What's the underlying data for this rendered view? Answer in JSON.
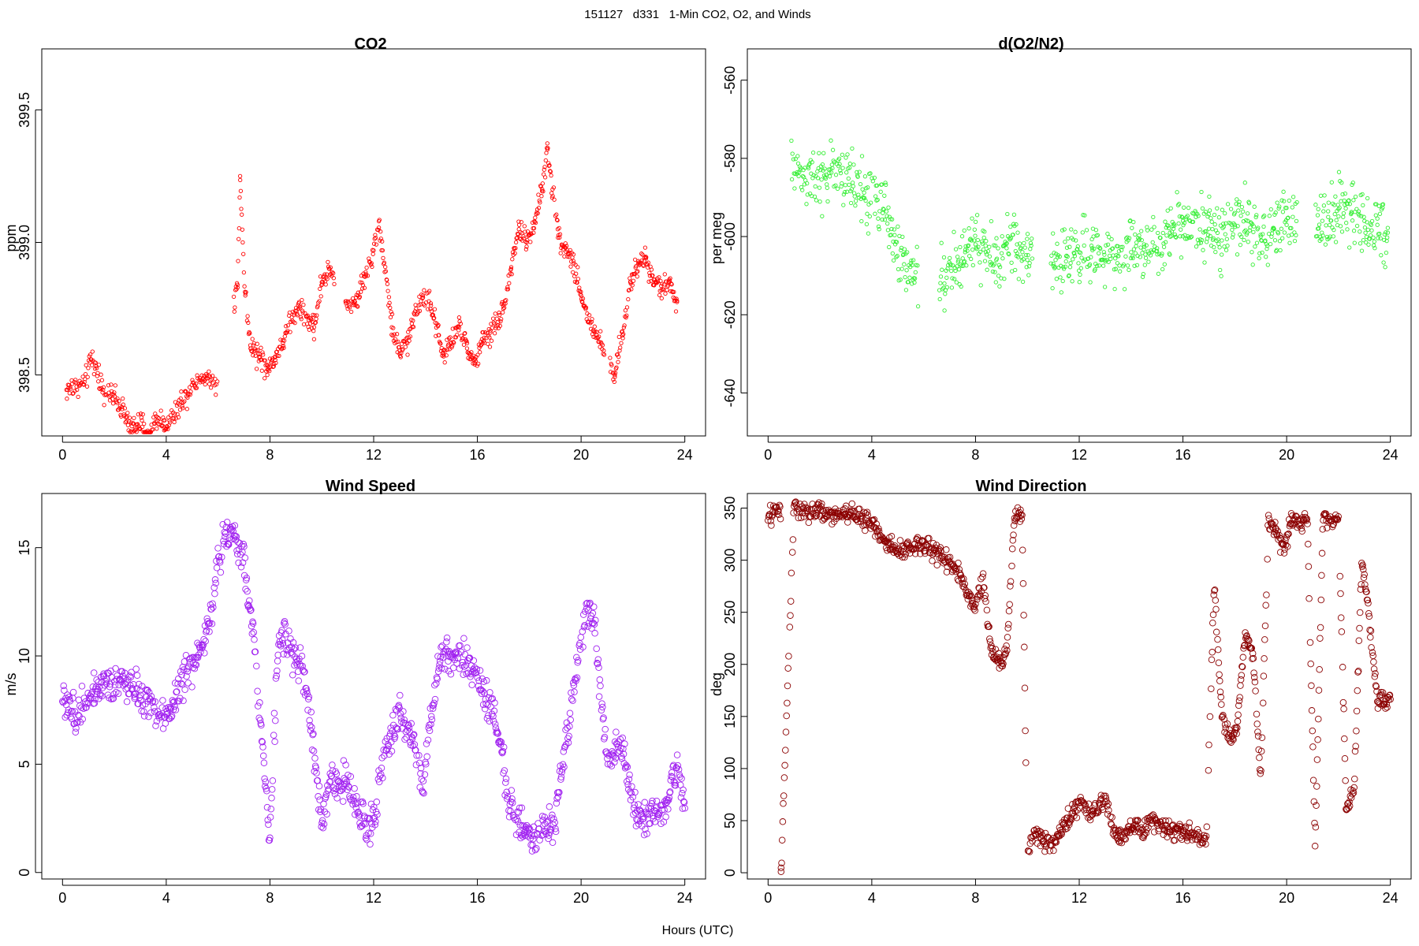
{
  "page": {
    "suptitle": "151127   d331   1-Min CO2, O2, and Winds",
    "xlabel": "Hours (UTC)"
  },
  "chart_data": [
    {
      "id": "co2",
      "type": "scatter",
      "title": "CO2",
      "ylabel": "ppm",
      "xlim": [
        -0.8,
        24.8
      ],
      "ylim": [
        398.27,
        399.73
      ],
      "xticks": [
        0,
        4,
        8,
        12,
        16,
        20,
        24
      ],
      "yticks": [
        398.5,
        399.0,
        399.5
      ],
      "ytick_labels": [
        "398.5",
        "399.0",
        "399.5"
      ],
      "color": "#ff0000",
      "marker_size": 2.2,
      "anchors": [
        [
          0.15,
          398.44
        ],
        [
          0.5,
          398.46
        ],
        [
          0.9,
          398.47
        ],
        [
          1.1,
          398.58
        ],
        [
          1.3,
          398.52
        ],
        [
          1.6,
          398.44
        ],
        [
          1.9,
          398.42
        ],
        [
          2.3,
          398.38
        ],
        [
          2.6,
          398.3
        ],
        [
          3.0,
          398.32
        ],
        [
          3.3,
          398.26
        ],
        [
          3.6,
          398.34
        ],
        [
          4.0,
          398.31
        ],
        [
          4.4,
          398.37
        ],
        [
          4.8,
          398.43
        ],
        [
          5.1,
          398.48
        ],
        [
          5.6,
          398.49
        ],
        [
          5.9,
          398.46
        ]
      ],
      "gaps": [
        [
          6.0,
          6.6
        ],
        [
          10.5,
          10.9
        ],
        [
          20.9,
          21.1
        ]
      ],
      "points": [
        [
          6.75,
          398.84
        ],
        [
          6.85,
          399.25
        ],
        [
          6.95,
          399.0
        ],
        [
          7.05,
          398.8
        ],
        [
          7.25,
          398.6
        ],
        [
          7.6,
          398.58
        ],
        [
          7.9,
          398.52
        ],
        [
          8.2,
          398.57
        ],
        [
          8.5,
          398.62
        ],
        [
          8.8,
          398.7
        ],
        [
          9.1,
          398.75
        ],
        [
          9.4,
          398.72
        ],
        [
          9.7,
          398.68
        ],
        [
          10.0,
          398.85
        ],
        [
          10.3,
          398.9
        ],
        [
          11.0,
          398.75
        ],
        [
          11.4,
          398.8
        ],
        [
          11.7,
          398.88
        ],
        [
          12.0,
          398.97
        ],
        [
          12.2,
          399.08
        ],
        [
          12.5,
          398.86
        ],
        [
          12.7,
          398.68
        ],
        [
          13.0,
          398.58
        ],
        [
          13.3,
          398.62
        ],
        [
          13.6,
          398.74
        ],
        [
          13.9,
          398.8
        ],
        [
          14.2,
          398.77
        ],
        [
          14.5,
          398.65
        ],
        [
          14.7,
          398.57
        ],
        [
          15.0,
          398.62
        ],
        [
          15.3,
          398.68
        ],
        [
          15.6,
          398.6
        ],
        [
          15.9,
          398.54
        ],
        [
          16.2,
          398.62
        ],
        [
          16.5,
          398.66
        ],
        [
          16.8,
          398.7
        ],
        [
          17.0,
          398.75
        ],
        [
          17.3,
          398.9
        ],
        [
          17.6,
          399.05
        ],
        [
          17.9,
          399.0
        ],
        [
          18.2,
          399.08
        ],
        [
          18.5,
          399.2
        ],
        [
          18.7,
          399.35
        ],
        [
          18.9,
          399.2
        ],
        [
          19.1,
          399.05
        ],
        [
          19.4,
          398.98
        ],
        [
          19.7,
          398.93
        ],
        [
          20.0,
          398.8
        ],
        [
          20.3,
          398.7
        ],
        [
          20.6,
          398.65
        ],
        [
          21.3,
          398.5
        ],
        [
          21.6,
          398.65
        ],
        [
          21.9,
          398.85
        ],
        [
          22.2,
          398.92
        ],
        [
          22.5,
          398.94
        ],
        [
          22.8,
          398.86
        ],
        [
          23.1,
          398.82
        ],
        [
          23.4,
          398.86
        ],
        [
          23.7,
          398.78
        ]
      ]
    },
    {
      "id": "o2",
      "type": "scatter",
      "title": "d(O2/N2)",
      "ylabel": "per meg",
      "xlim": [
        -0.8,
        24.8
      ],
      "ylim": [
        -651.0,
        -552.0
      ],
      "xticks": [
        0,
        4,
        8,
        12,
        16,
        20,
        24
      ],
      "yticks": [
        -640,
        -620,
        -600,
        -580,
        -560
      ],
      "ytick_labels": [
        "-640",
        "-620",
        "-600",
        "-580",
        "-560"
      ],
      "color": "#33ee33",
      "marker_size": 2.2,
      "anchors": [
        [
          0.9,
          -582
        ],
        [
          1.5,
          -584
        ],
        [
          2.0,
          -586
        ],
        [
          2.5,
          -583
        ],
        [
          3.0,
          -585
        ],
        [
          3.5,
          -588
        ],
        [
          4.0,
          -590
        ],
        [
          4.5,
          -593
        ],
        [
          5.0,
          -604
        ],
        [
          5.5,
          -608
        ]
      ],
      "gaps": [
        [
          5.8,
          6.6
        ],
        [
          10.2,
          10.9
        ],
        [
          20.4,
          21.1
        ]
      ],
      "points": [
        [
          6.8,
          -612
        ],
        [
          7.2,
          -608
        ],
        [
          7.6,
          -604
        ],
        [
          8.0,
          -602
        ],
        [
          8.4,
          -604
        ],
        [
          8.8,
          -606
        ],
        [
          9.2,
          -603
        ],
        [
          9.6,
          -602
        ],
        [
          10.0,
          -606
        ],
        [
          11.0,
          -607
        ],
        [
          11.5,
          -605
        ],
        [
          12.0,
          -604
        ],
        [
          12.5,
          -603
        ],
        [
          13.0,
          -606
        ],
        [
          13.5,
          -605
        ],
        [
          14.0,
          -604
        ],
        [
          14.5,
          -602
        ],
        [
          15.0,
          -603
        ],
        [
          15.5,
          -599
        ],
        [
          16.0,
          -596
        ],
        [
          16.5,
          -595
        ],
        [
          17.0,
          -598
        ],
        [
          17.5,
          -601
        ],
        [
          18.0,
          -597
        ],
        [
          18.5,
          -596
        ],
        [
          19.0,
          -600
        ],
        [
          19.5,
          -598
        ],
        [
          20.0,
          -597
        ],
        [
          21.2,
          -598
        ],
        [
          21.6,
          -595
        ],
        [
          22.0,
          -593
        ],
        [
          22.5,
          -594
        ],
        [
          23.0,
          -596
        ],
        [
          23.5,
          -597
        ],
        [
          23.9,
          -599
        ]
      ]
    },
    {
      "id": "wspd",
      "type": "scatter",
      "title": "Wind Speed",
      "ylabel": "m/s",
      "xlim": [
        -0.8,
        24.8
      ],
      "ylim": [
        -0.3,
        17.5
      ],
      "xticks": [
        0,
        4,
        8,
        12,
        16,
        20,
        24
      ],
      "yticks": [
        0,
        5,
        10,
        15
      ],
      "ytick_labels": [
        "0",
        "5",
        "10",
        "15"
      ],
      "color": "#a020f0",
      "marker_size": 3.8,
      "anchors": [
        [
          0.0,
          8.0
        ],
        [
          0.5,
          7.2
        ],
        [
          0.9,
          8.0
        ],
        [
          1.3,
          8.3
        ],
        [
          1.8,
          8.6
        ],
        [
          2.3,
          8.9
        ],
        [
          2.8,
          8.4
        ],
        [
          3.3,
          7.9
        ],
        [
          3.8,
          7.0
        ],
        [
          4.2,
          7.7
        ],
        [
          4.6,
          8.8
        ],
        [
          5.0,
          9.5
        ],
        [
          5.4,
          10.5
        ],
        [
          5.8,
          12.5
        ],
        [
          6.2,
          15.5
        ],
        [
          6.6,
          15.8
        ],
        [
          7.0,
          14.5
        ],
        [
          7.4,
          10.5
        ],
        [
          7.7,
          6.0
        ],
        [
          8.0,
          1.5
        ],
        [
          8.3,
          10.5
        ],
        [
          8.6,
          11.0
        ],
        [
          8.9,
          10.0
        ],
        [
          9.2,
          9.5
        ],
        [
          9.5,
          7.5
        ],
        [
          9.8,
          4.5
        ],
        [
          10.0,
          2.0
        ],
        [
          10.3,
          4.5
        ],
        [
          10.6,
          4.0
        ],
        [
          10.9,
          4.5
        ],
        [
          11.2,
          3.5
        ],
        [
          11.5,
          2.5
        ],
        [
          11.8,
          2.0
        ],
        [
          12.1,
          3.0
        ],
        [
          12.4,
          5.5
        ],
        [
          12.7,
          6.5
        ],
        [
          13.0,
          7.5
        ],
        [
          13.3,
          6.5
        ],
        [
          13.6,
          6.0
        ],
        [
          13.9,
          4.0
        ],
        [
          14.2,
          7.0
        ],
        [
          14.5,
          9.5
        ],
        [
          14.8,
          10.0
        ],
        [
          15.1,
          9.5
        ],
        [
          15.4,
          10.0
        ],
        [
          15.7,
          9.5
        ],
        [
          16.0,
          9.0
        ],
        [
          16.3,
          8.0
        ],
        [
          16.6,
          7.5
        ],
        [
          16.9,
          6.0
        ],
        [
          17.2,
          3.0
        ],
        [
          17.5,
          2.5
        ],
        [
          17.8,
          2.0
        ],
        [
          18.1,
          1.5
        ],
        [
          18.4,
          2.0
        ],
        [
          18.7,
          2.0
        ],
        [
          19.0,
          2.5
        ],
        [
          19.3,
          5.0
        ],
        [
          19.6,
          7.5
        ],
        [
          19.9,
          10.0
        ],
        [
          20.2,
          12.0
        ],
        [
          20.5,
          11.5
        ],
        [
          20.8,
          7.5
        ],
        [
          21.1,
          5.0
        ],
        [
          21.4,
          6.0
        ],
        [
          21.7,
          5.0
        ],
        [
          22.0,
          3.0
        ],
        [
          22.3,
          2.5
        ],
        [
          22.6,
          2.5
        ],
        [
          22.9,
          3.0
        ],
        [
          23.2,
          2.5
        ],
        [
          23.5,
          4.5
        ],
        [
          23.8,
          4.5
        ],
        [
          24.0,
          3.5
        ]
      ]
    },
    {
      "id": "wdir",
      "type": "scatter",
      "title": "Wind Direction",
      "ylabel": "deg",
      "xlim": [
        -0.8,
        24.8
      ],
      "ylim": [
        -6,
        364
      ],
      "xticks": [
        0,
        4,
        8,
        12,
        16,
        20,
        24
      ],
      "yticks": [
        0,
        50,
        100,
        150,
        200,
        250,
        300,
        350
      ],
      "ytick_labels": [
        "0",
        "50",
        "100",
        "150",
        "200",
        "250",
        "300",
        "350"
      ],
      "color": "#8b0000",
      "marker_size": 3.8,
      "anchors": [
        [
          0.0,
          340
        ],
        [
          0.5,
          350
        ],
        [
          1.0,
          352
        ],
        [
          1.5,
          345
        ],
        [
          2.0,
          347
        ],
        [
          2.5,
          343
        ],
        [
          3.0,
          345
        ],
        [
          3.5,
          342
        ],
        [
          4.0,
          336
        ],
        [
          4.5,
          318
        ],
        [
          5.0,
          310
        ],
        [
          5.5,
          312
        ],
        [
          6.0,
          313
        ],
        [
          6.5,
          308
        ],
        [
          7.0,
          298
        ],
        [
          7.4,
          285
        ],
        [
          7.7,
          265
        ],
        [
          8.0,
          255
        ],
        [
          8.3,
          280
        ],
        [
          8.6,
          215
        ],
        [
          8.9,
          200
        ],
        [
          9.2,
          210
        ],
        [
          9.5,
          345
        ],
        [
          9.8,
          340
        ],
        [
          10.0,
          20
        ],
        [
          10.3,
          40
        ],
        [
          10.6,
          30
        ],
        [
          10.9,
          25
        ],
        [
          11.2,
          35
        ],
        [
          11.5,
          50
        ],
        [
          11.8,
          60
        ],
        [
          12.1,
          70
        ],
        [
          12.4,
          55
        ],
        [
          12.7,
          65
        ],
        [
          13.0,
          70
        ],
        [
          13.3,
          40
        ],
        [
          13.6,
          35
        ],
        [
          13.9,
          40
        ],
        [
          14.2,
          45
        ],
        [
          14.5,
          40
        ],
        [
          14.8,
          50
        ],
        [
          15.1,
          45
        ],
        [
          15.4,
          40
        ],
        [
          15.7,
          42
        ],
        [
          16.0,
          40
        ],
        [
          16.3,
          38
        ],
        [
          16.6,
          35
        ],
        [
          16.9,
          30
        ],
        [
          17.2,
          280
        ],
        [
          17.5,
          150
        ],
        [
          17.8,
          130
        ],
        [
          18.1,
          140
        ],
        [
          18.4,
          230
        ],
        [
          18.7,
          210
        ],
        [
          19.0,
          90
        ],
        [
          19.3,
          340
        ],
        [
          19.6,
          330
        ],
        [
          19.9,
          310
        ],
        [
          20.2,
          340
        ],
        [
          20.5,
          335
        ],
        [
          20.8,
          340
        ],
        [
          21.1,
          20
        ],
        [
          21.4,
          340
        ],
        [
          21.7,
          338
        ],
        [
          22.0,
          340
        ],
        [
          22.3,
          60
        ],
        [
          22.6,
          80
        ],
        [
          22.9,
          300
        ],
        [
          23.2,
          240
        ],
        [
          23.5,
          165
        ],
        [
          23.8,
          165
        ],
        [
          24.0,
          165
        ]
      ],
      "points": [
        [
          0.5,
          1
        ]
      ]
    }
  ]
}
